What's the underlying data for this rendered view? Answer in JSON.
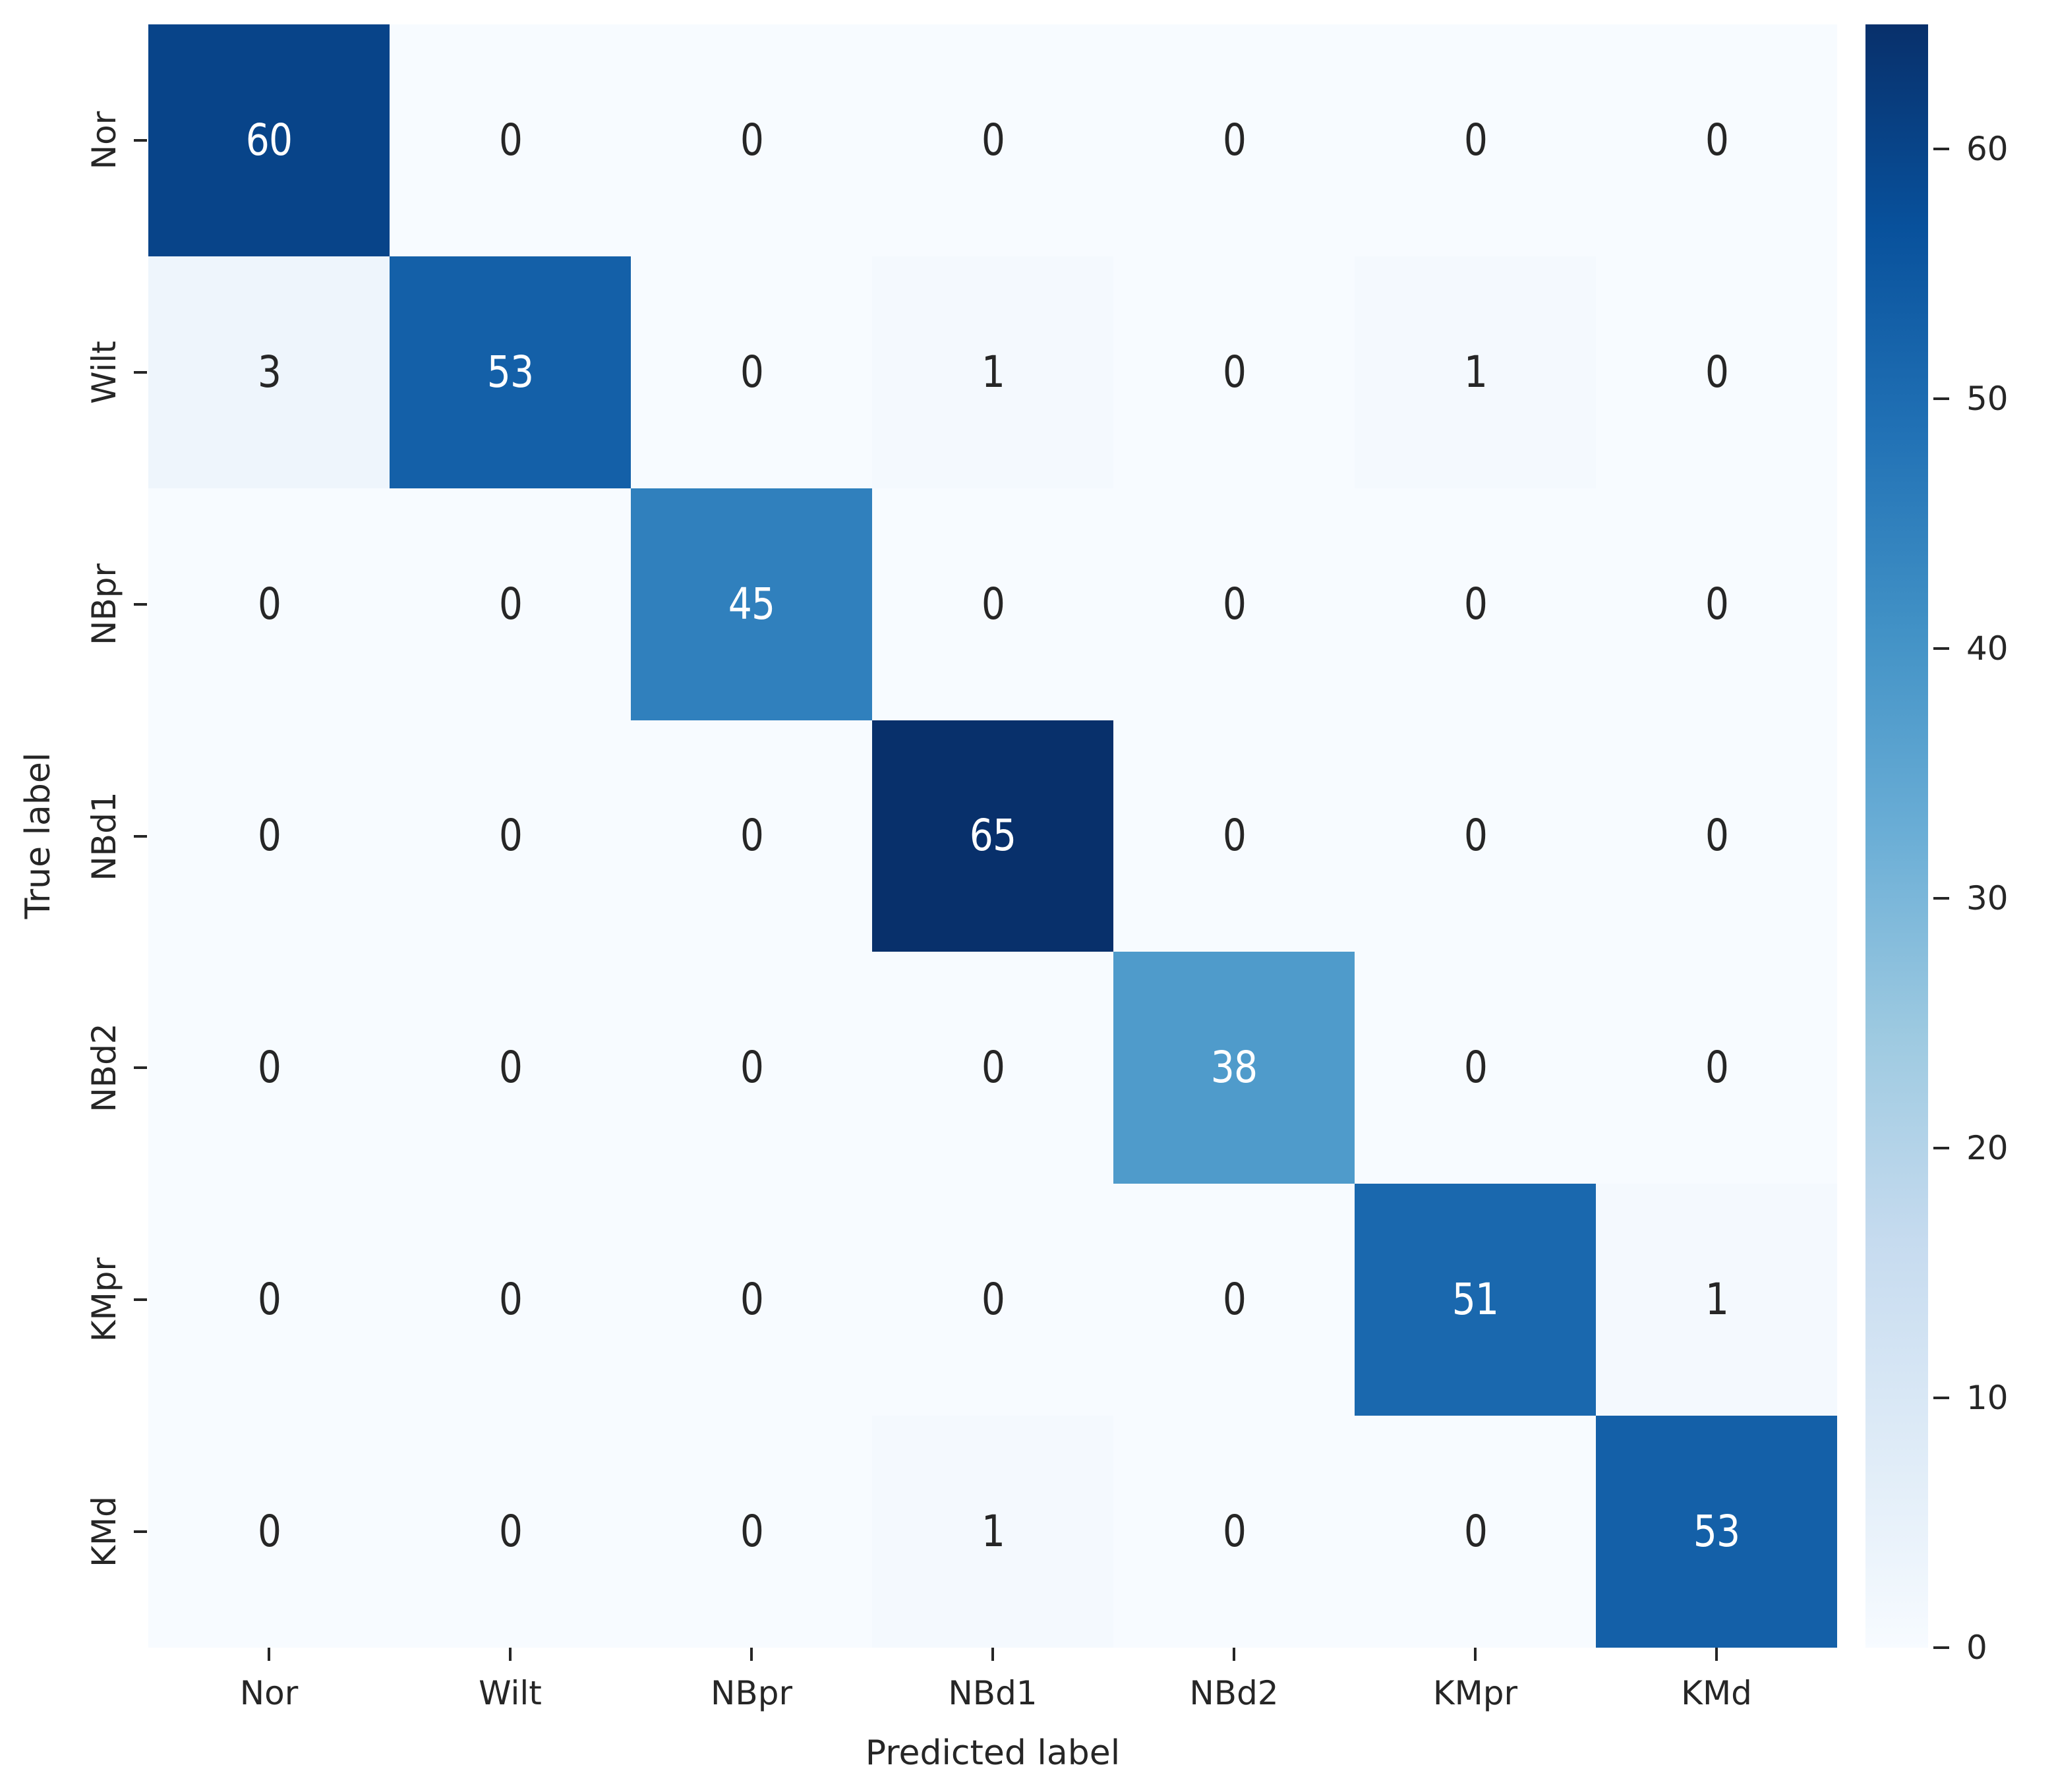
{
  "chart_data": {
    "type": "heatmap",
    "title": "",
    "xlabel": "Predicted label",
    "ylabel": "True label",
    "x_tick_labels": [
      "Nor",
      "Wilt",
      "NBpr",
      "NBd1",
      "NBd2",
      "KMpr",
      "KMd"
    ],
    "y_tick_labels": [
      "Nor",
      "Wilt",
      "NBpr",
      "NBd1",
      "NBd2",
      "KMpr",
      "KMd"
    ],
    "matrix": [
      [
        60,
        0,
        0,
        0,
        0,
        0,
        0
      ],
      [
        3,
        53,
        0,
        1,
        0,
        1,
        0
      ],
      [
        0,
        0,
        45,
        0,
        0,
        0,
        0
      ],
      [
        0,
        0,
        0,
        65,
        0,
        0,
        0
      ],
      [
        0,
        0,
        0,
        0,
        38,
        0,
        0
      ],
      [
        0,
        0,
        0,
        0,
        0,
        51,
        1
      ],
      [
        0,
        0,
        0,
        1,
        0,
        0,
        53
      ]
    ],
    "vmin": 0,
    "vmax": 65,
    "colormap": "Blues",
    "annotations": true,
    "legend_position": "none",
    "grid": false,
    "colorbar": {
      "position": "right",
      "ticks": [
        0,
        10,
        20,
        30,
        40,
        50,
        60
      ]
    }
  },
  "colors": {
    "background": "#ffffff",
    "label_text": "#262626",
    "tick_mark": "#262626",
    "annot_dark": "#262626",
    "annot_light": "#ffffff",
    "blues_stops": [
      "#f7fbff",
      "#deebf7",
      "#c6dbef",
      "#9ecae1",
      "#6baed6",
      "#4292c6",
      "#2171b5",
      "#08519c",
      "#08306b"
    ]
  }
}
